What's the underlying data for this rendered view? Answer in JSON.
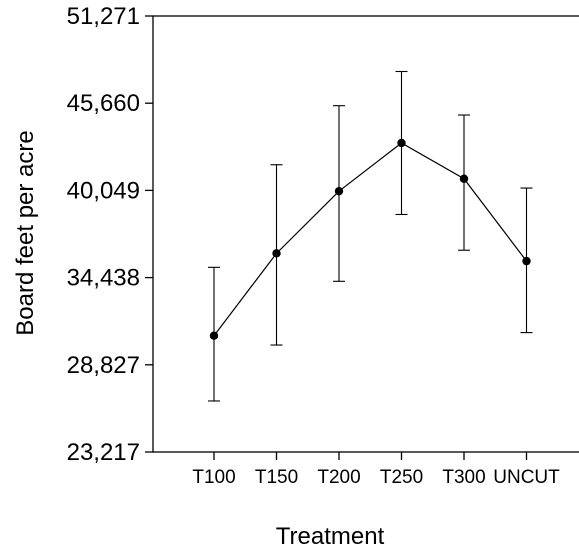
{
  "chart_data": {
    "type": "line",
    "title": "",
    "xlabel": "Treatment",
    "ylabel": "Board feet per acre",
    "categories": [
      "T100",
      "T150",
      "T200",
      "T250",
      "T300",
      "UNCUT"
    ],
    "series": [
      {
        "values": [
          30700,
          36000,
          40000,
          43100,
          40800,
          35500
        ],
        "error_low": [
          26500,
          30100,
          34200,
          38500,
          36200,
          30900
        ],
        "error_high": [
          35100,
          41700,
          45500,
          47700,
          44900,
          40200
        ]
      }
    ],
    "ylim": [
      23217,
      51271
    ],
    "yticks": [
      "23,217",
      "28,827",
      "34,438",
      "40,049",
      "45,660",
      "51,271"
    ],
    "grid": false,
    "legend": "none",
    "colors": {
      "line": "#000000",
      "marker": "#000000",
      "axis": "#000000"
    }
  }
}
